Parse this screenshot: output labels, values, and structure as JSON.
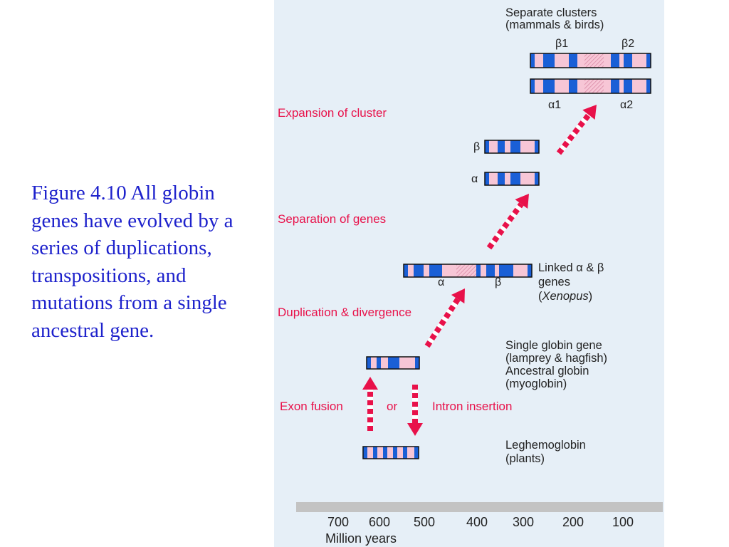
{
  "caption": "Figure 4.10 All globin genes have evolved by a series of duplications, transpositions, and mutations from a single ancestral gene.",
  "colors": {
    "caption_text": "#1e22cc",
    "panel_background": "#e6eff7",
    "stage_text": "#e8114a",
    "exon": "#1a5fd6",
    "intron": "#f7c6d6",
    "arrow": "#e8114a"
  },
  "stages": {
    "expansion": "Expansion of cluster",
    "separation": "Separation of genes",
    "duplication": "Duplication & divergence",
    "exon_fusion": "Exon fusion",
    "or": "or",
    "intron_insertion": "Intron insertion"
  },
  "labels": {
    "separate_clusters_1": "Separate clusters",
    "separate_clusters_2": "(mammals & birds)",
    "linked_1": "Linked α & β",
    "linked_2": "genes",
    "linked_3_open": "(",
    "linked_3_species": "Xenopus",
    "linked_3_close": ")",
    "single_1": "Single globin gene",
    "single_2": "(lamprey & hagfish)",
    "ancestral_1": "Ancestral globin",
    "ancestral_2": "(myoglobin)",
    "leghemo_1": "Leghemoglobin",
    "leghemo_2": "(plants)"
  },
  "genes": {
    "beta1": "β1",
    "beta2": "β2",
    "alpha1": "α1",
    "alpha2": "α2",
    "beta": "β",
    "alpha": "α",
    "linked_alpha": "α",
    "linked_beta": "β"
  },
  "axis": {
    "label": "Million years",
    "ticks": [
      "700",
      "600",
      "500",
      "400",
      "300",
      "200",
      "100"
    ]
  }
}
